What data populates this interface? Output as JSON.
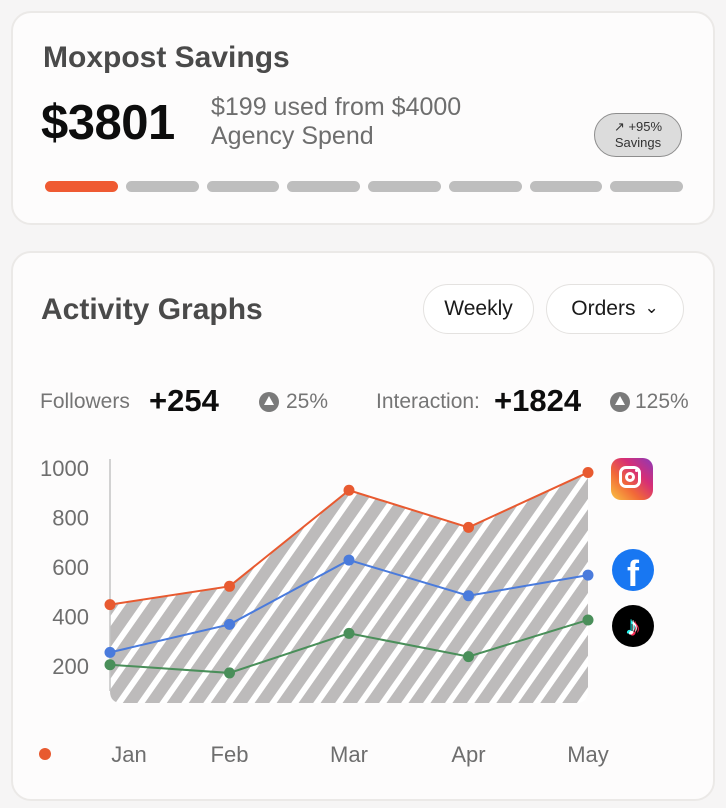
{
  "savings": {
    "title": "Moxpost Savings",
    "amount": "$3801",
    "used_line1": "$199 used from $4000",
    "used_line2": "Agency Spend",
    "badge_line1": "↗ +95%",
    "badge_line2": "Savings",
    "progress_total_segments": 8,
    "progress_filled_segments": 1,
    "accent_color": "#ef5a32"
  },
  "activity": {
    "title": "Activity Graphs",
    "period_label": "Weekly",
    "metric_label": "Orders",
    "stats": [
      {
        "label": "Followers",
        "value": "+254",
        "change": "25%"
      },
      {
        "label": "Interaction:",
        "value": "+1824",
        "change": "125%"
      }
    ]
  },
  "chart_data": {
    "type": "line",
    "categories": [
      "Jan",
      "Feb",
      "Mar",
      "Apr",
      "May"
    ],
    "y_ticks": [
      "1000",
      "800",
      "600",
      "400",
      "200"
    ],
    "ylim": [
      100,
      1050
    ],
    "series": [
      {
        "name": "Instagram",
        "color": "#e85a30",
        "icon": "instagram-icon",
        "values": [
          448,
          522,
          910,
          760,
          982
        ]
      },
      {
        "name": "Facebook",
        "color": "#4a7bdc",
        "icon": "facebook-icon",
        "values": [
          255,
          368,
          628,
          484,
          567
        ]
      },
      {
        "name": "TikTok",
        "color": "#4a8f5a",
        "icon": "tiktok-icon",
        "values": [
          205,
          172,
          332,
          238,
          386
        ]
      }
    ],
    "legend_marker_color": "#e85a30",
    "fill": "hatched"
  }
}
